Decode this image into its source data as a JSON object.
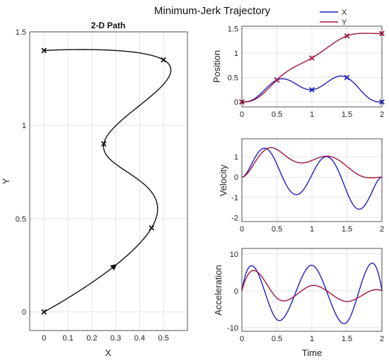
{
  "figure": {
    "title": "Minimum-Jerk Trajectory"
  },
  "colors": {
    "x": "#1f1fbf",
    "y": "#a0153e",
    "path": "#111111"
  },
  "legend": {
    "placement": "top-right",
    "entries": [
      "X",
      "Y"
    ]
  },
  "chart_data": [
    {
      "id": "path",
      "type": "line",
      "title": "2-D Path",
      "xlabel": "X",
      "ylabel": "Y",
      "xlim": [
        -0.06,
        0.6
      ],
      "ylim": [
        -0.1,
        1.5
      ],
      "xticks": [
        "0",
        "0.1",
        "0.2",
        "0.3",
        "0.4",
        "0.5"
      ],
      "yticks": [
        "0",
        "0.5",
        "1",
        "1.5"
      ],
      "grid": true,
      "waypoints": [
        {
          "x": 0,
          "y": 0
        },
        {
          "x": 0.45,
          "y": 0.45
        },
        {
          "x": 0.25,
          "y": 0.9
        },
        {
          "x": 0.5,
          "y": 1.35
        },
        {
          "x": 0,
          "y": 1.4
        }
      ],
      "direction_arrow_at": {
        "x": 0.3,
        "y": 0.26
      }
    },
    {
      "id": "position",
      "type": "line",
      "xlabel": "",
      "ylabel": "Position",
      "xlim": [
        0,
        2
      ],
      "ylim": [
        -0.1,
        1.55
      ],
      "xticks": [
        "0",
        "0.5",
        "1",
        "1.5",
        "2"
      ],
      "yticks": [
        "0",
        "0.5",
        "1",
        "1.5"
      ],
      "grid": true,
      "series": [
        {
          "name": "X",
          "knots_t": [
            0,
            0.5,
            1,
            1.5,
            2
          ],
          "knots_v": [
            0,
            0.45,
            0.25,
            0.5,
            0
          ]
        },
        {
          "name": "Y",
          "knots_t": [
            0,
            0.5,
            1,
            1.5,
            2
          ],
          "knots_v": [
            0,
            0.45,
            0.9,
            1.35,
            1.4
          ]
        }
      ]
    },
    {
      "id": "velocity",
      "type": "line",
      "xlabel": "",
      "ylabel": "Velocity",
      "xlim": [
        0,
        2
      ],
      "ylim": [
        -2.2,
        1.9
      ],
      "xticks": [
        "0",
        "0.5",
        "1",
        "1.5",
        "2"
      ],
      "yticks": [
        "-2",
        "-1",
        "0",
        "1"
      ],
      "grid": true
    },
    {
      "id": "acceleration",
      "type": "line",
      "xlabel": "Time",
      "ylabel": "Acceleration",
      "xlim": [
        0,
        2
      ],
      "ylim": [
        -11,
        11.5
      ],
      "xticks": [
        "0",
        "0.5",
        "1",
        "1.5",
        "2"
      ],
      "yticks": [
        "-10",
        "0",
        "10"
      ],
      "grid": true
    }
  ]
}
